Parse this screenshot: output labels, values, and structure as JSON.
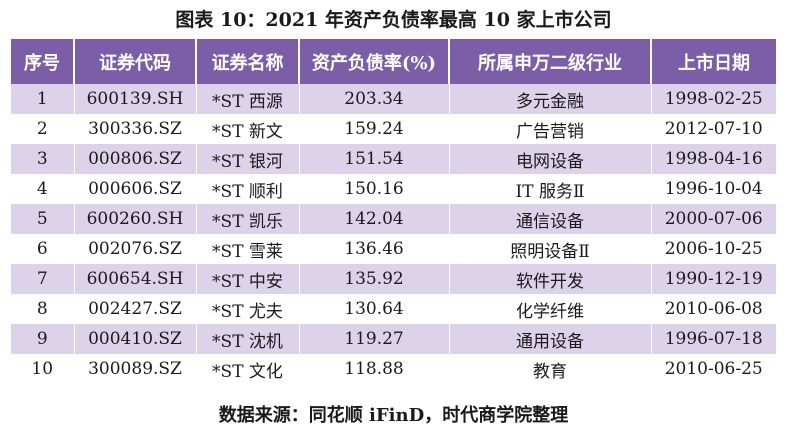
{
  "title": "图表 10：2021 年资产负债率最高 10 家上市公司",
  "headers": [
    "序号",
    "证券代码",
    "证券名称",
    "资产负债率(%)",
    "所属申万二级行业",
    "上市日期"
  ],
  "rows": [
    [
      "1",
      "600139.SH",
      "*ST 西源",
      "203.34",
      "多元金融",
      "1998-02-25"
    ],
    [
      "2",
      "300336.SZ",
      "*ST 新文",
      "159.24",
      "广告营销",
      "2012-07-10"
    ],
    [
      "3",
      "000806.SZ",
      "*ST 银河",
      "151.54",
      "电网设备",
      "1998-04-16"
    ],
    [
      "4",
      "000606.SZ",
      "*ST 顺利",
      "150.16",
      "IT 服务Ⅱ",
      "1996-10-04"
    ],
    [
      "5",
      "600260.SH",
      "*ST 凯乐",
      "142.04",
      "通信设备",
      "2000-07-06"
    ],
    [
      "6",
      "002076.SZ",
      "*ST 雪莱",
      "136.46",
      "照明设备Ⅱ",
      "2006-10-25"
    ],
    [
      "7",
      "600654.SH",
      "*ST 中安",
      "135.92",
      "软件开发",
      "1990-12-19"
    ],
    [
      "8",
      "002427.SZ",
      "*ST 尤夫",
      "130.64",
      "化学纤维",
      "2010-06-08"
    ],
    [
      "9",
      "000410.SZ",
      "*ST 沈机",
      "119.27",
      "通用设备",
      "1996-07-18"
    ],
    [
      "10",
      "300089.SZ",
      "*ST 文化",
      "118.88",
      "教育",
      "2010-06-25"
    ]
  ],
  "source": "数据来源：同花顺 iFinD，时代商学院整理",
  "colors": {
    "header_bg": "#7b5ea7",
    "odd_row_bg": "#dcd2ea",
    "even_row_bg": "#ffffff"
  }
}
